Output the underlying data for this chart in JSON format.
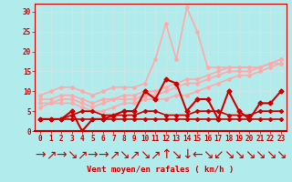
{
  "background_color": "#b2ebec",
  "grid_color": "#c8e8e8",
  "x_labels": [
    "0",
    "1",
    "2",
    "3",
    "4",
    "5",
    "6",
    "7",
    "8",
    "9",
    "10",
    "11",
    "12",
    "13",
    "14",
    "15",
    "16",
    "17",
    "18",
    "19",
    "20",
    "21",
    "22",
    "23"
  ],
  "xlabel": "Vent moyen/en rafales ( km/h )",
  "ylim": [
    0,
    32
  ],
  "yticks": [
    0,
    5,
    10,
    15,
    20,
    25,
    30
  ],
  "lines": [
    {
      "y": [
        3,
        3,
        3,
        3,
        3,
        3,
        3,
        3,
        3,
        3,
        3,
        3,
        3,
        3,
        3,
        3,
        3,
        3,
        3,
        3,
        3,
        3,
        3,
        3
      ],
      "color": "#cc0000",
      "lw": 1.2,
      "marker": "D",
      "ms": 2.0,
      "zorder": 5
    },
    {
      "y": [
        3,
        3,
        3,
        4,
        5,
        5,
        4,
        4,
        4,
        4,
        5,
        5,
        4,
        4,
        4,
        5,
        5,
        5,
        4,
        4,
        4,
        5,
        5,
        5
      ],
      "color": "#cc0000",
      "lw": 1.2,
      "marker": "D",
      "ms": 2.0,
      "zorder": 5
    },
    {
      "y": [
        3,
        3,
        3,
        5,
        0,
        3,
        3,
        4,
        5,
        5,
        10,
        8,
        13,
        12,
        5,
        8,
        8,
        3,
        10,
        5,
        3,
        7,
        7,
        10
      ],
      "color": "#cc0000",
      "lw": 1.5,
      "marker": "D",
      "ms": 2.5,
      "zorder": 5
    },
    {
      "y": [
        6,
        7,
        7,
        7,
        6,
        5,
        5,
        6,
        7,
        7,
        8,
        8,
        8,
        9,
        9,
        10,
        11,
        12,
        13,
        14,
        14,
        15,
        16,
        17
      ],
      "color": "#ffaaaa",
      "lw": 1.2,
      "marker": "D",
      "ms": 2.0,
      "zorder": 3
    },
    {
      "y": [
        7,
        7,
        8,
        8,
        7,
        6,
        7,
        8,
        8,
        8,
        9,
        9,
        10,
        11,
        12,
        12,
        13,
        14,
        15,
        15,
        15,
        16,
        17,
        17
      ],
      "color": "#ffaaaa",
      "lw": 1.2,
      "marker": "D",
      "ms": 2.0,
      "zorder": 3
    },
    {
      "y": [
        8,
        8,
        9,
        9,
        8,
        7,
        8,
        8,
        9,
        9,
        10,
        10,
        11,
        12,
        13,
        13,
        14,
        15,
        16,
        16,
        16,
        16,
        17,
        18
      ],
      "color": "#ffaaaa",
      "lw": 1.2,
      "marker": "D",
      "ms": 2.0,
      "zorder": 3
    },
    {
      "y": [
        9,
        10,
        11,
        11,
        10,
        9,
        10,
        11,
        11,
        11,
        12,
        18,
        27,
        18,
        31,
        25,
        16,
        16,
        16,
        16,
        16,
        16,
        17,
        18
      ],
      "color": "#ffaaaa",
      "lw": 1.2,
      "marker": "D",
      "ms": 2.0,
      "zorder": 3
    }
  ],
  "arrows": [
    "→",
    "↗",
    "→",
    "↘",
    "↗",
    "→",
    "→",
    "↗",
    "↘",
    "↗",
    "↘",
    "↗",
    "↑",
    "↘",
    "↓",
    "←",
    "↘",
    "↙",
    "↘",
    "↘",
    "↘",
    "↘",
    "↘",
    "↘"
  ],
  "tick_label_color": "#cc0000",
  "xlabel_color": "#cc0000",
  "xlabel_fontsize": 6.5,
  "tick_fontsize": 5.5
}
